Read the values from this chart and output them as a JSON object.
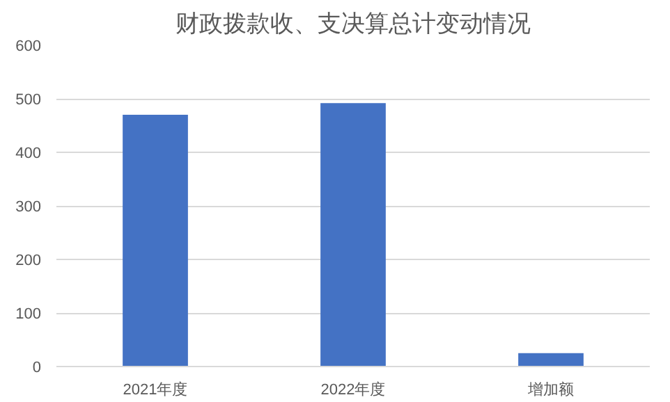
{
  "chart_data": {
    "type": "bar",
    "title": "财政拨款收、支决算总计变动情况",
    "categories": [
      "2021年度",
      "2022年度",
      "增加额"
    ],
    "values": [
      470,
      492,
      25
    ],
    "color": "#4472c4",
    "ylim": [
      0,
      600
    ],
    "yticks": [
      0,
      100,
      200,
      300,
      400,
      500,
      600
    ],
    "grid": "y"
  }
}
